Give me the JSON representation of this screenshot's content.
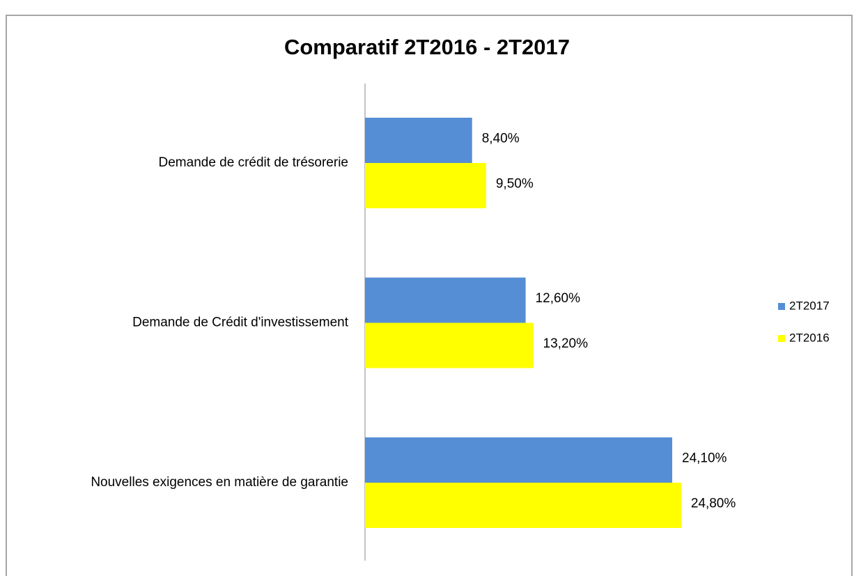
{
  "chart_data": {
    "type": "barh",
    "title": "Comparatif 2T2016 - 2T2017",
    "categories": [
      "Demande de crédit de trésorerie",
      "Demande de Crédit d'investissement",
      "Nouvelles exigences en matière de garantie"
    ],
    "series": [
      {
        "name": "2T2017",
        "color": "#558ed5",
        "values": [
          8.4,
          12.6,
          24.1
        ],
        "value_labels": [
          "8,40%",
          "12,60%",
          "24,10%"
        ]
      },
      {
        "name": "2T2016",
        "color": "#ffff00",
        "values": [
          9.5,
          13.2,
          24.8
        ],
        "value_labels": [
          "9,50%",
          "13,20%",
          "24,80%"
        ]
      }
    ],
    "legend": "right"
  }
}
